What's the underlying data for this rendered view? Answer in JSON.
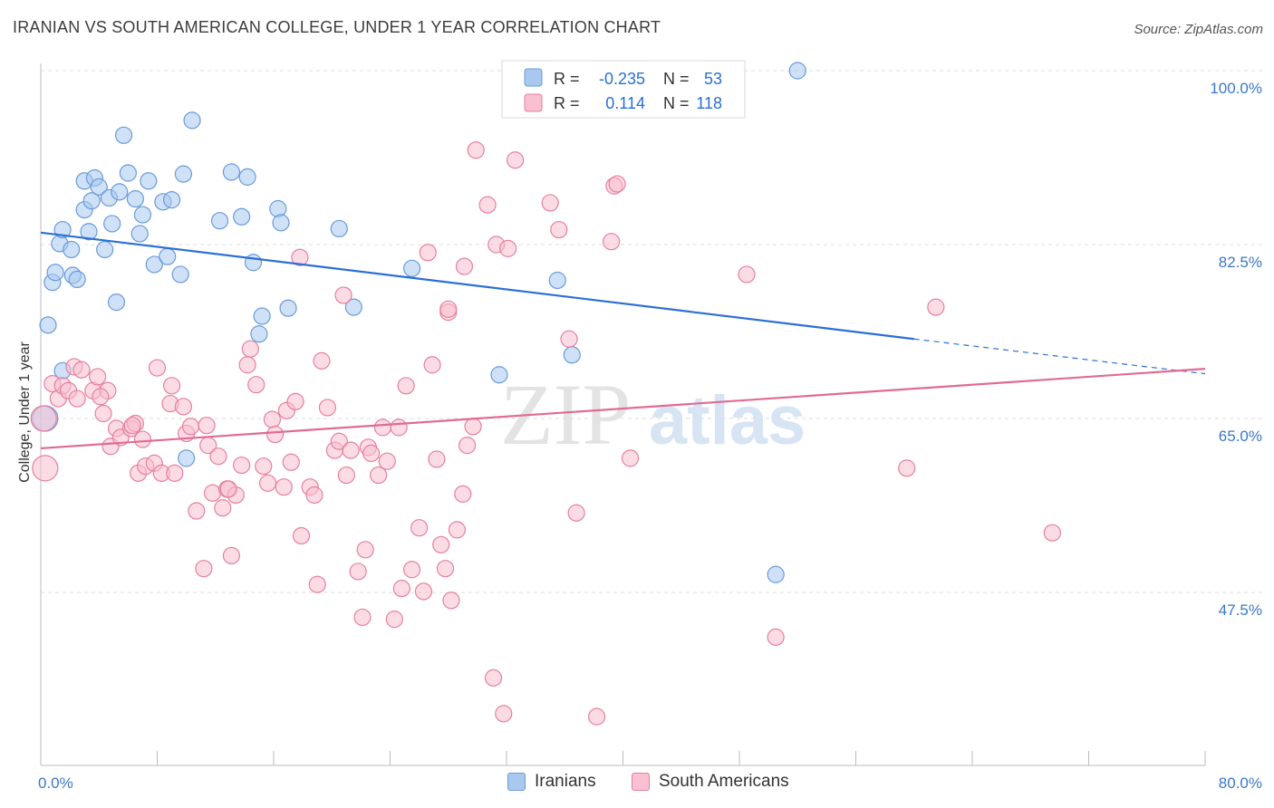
{
  "header": {
    "title": "IRANIAN VS SOUTH AMERICAN COLLEGE, UNDER 1 YEAR CORRELATION CHART",
    "source": "Source: ZipAtlas.com"
  },
  "watermark": {
    "zip": "ZIP",
    "atlas": "atlas"
  },
  "stats_legend": [
    {
      "r_label": "R =",
      "r_value": "-0.235",
      "n_label": "N =",
      "n_value": "53",
      "color": "#a8c8f0",
      "stroke": "#6a9bd8"
    },
    {
      "r_label": "R =",
      "r_value": "0.114",
      "n_label": "N =",
      "n_value": "118",
      "color": "#f8c0d0",
      "stroke": "#e67fa0"
    }
  ],
  "bottom_legend": [
    {
      "label": "Iranians",
      "color": "#a8c8f0",
      "stroke": "#6a9bd8"
    },
    {
      "label": "South Americans",
      "color": "#f8c0d0",
      "stroke": "#e67fa0"
    }
  ],
  "chart_data": {
    "type": "scatter",
    "title": "IRANIAN VS SOUTH AMERICAN COLLEGE, UNDER 1 YEAR CORRELATION CHART",
    "xlabel": "",
    "ylabel": "College, Under 1 year",
    "xlim": [
      0,
      80
    ],
    "ylim": [
      32,
      102
    ],
    "x_tick_labels": {
      "left": "0.0%",
      "right": "80.0%"
    },
    "y_ticks": [
      {
        "value": 100,
        "label": "100.0%"
      },
      {
        "value": 82.5,
        "label": "82.5%"
      },
      {
        "value": 65,
        "label": "65.0%"
      },
      {
        "value": 47.5,
        "label": "47.5%"
      }
    ],
    "grid": true,
    "series": [
      {
        "name": "Iranians",
        "color": "#a8c8f0",
        "stroke": "#6a9bd8",
        "line_color": "#2a6fd6",
        "trend": {
          "x0": 0,
          "y0": 83.7,
          "x1": 60,
          "y1": 73.0,
          "dash_to_x": 80,
          "dash_y": 69.5
        },
        "points": [
          [
            0.8,
            78.7
          ],
          [
            1.0,
            79.7
          ],
          [
            1.3,
            82.6
          ],
          [
            1.5,
            84.0
          ],
          [
            2.1,
            82.0
          ],
          [
            2.2,
            79.4
          ],
          [
            2.5,
            79.0
          ],
          [
            3.0,
            88.9
          ],
          [
            3.0,
            86.0
          ],
          [
            3.3,
            83.8
          ],
          [
            3.5,
            86.9
          ],
          [
            3.7,
            89.2
          ],
          [
            4.0,
            88.3
          ],
          [
            4.4,
            82.0
          ],
          [
            4.7,
            87.2
          ],
          [
            4.9,
            84.6
          ],
          [
            5.2,
            76.7
          ],
          [
            5.4,
            87.8
          ],
          [
            5.7,
            93.5
          ],
          [
            6.0,
            89.7
          ],
          [
            6.5,
            87.1
          ],
          [
            6.8,
            83.6
          ],
          [
            7.0,
            85.5
          ],
          [
            7.4,
            88.9
          ],
          [
            7.8,
            80.5
          ],
          [
            8.4,
            86.8
          ],
          [
            8.7,
            81.3
          ],
          [
            9.0,
            87.0
          ],
          [
            9.6,
            79.5
          ],
          [
            9.8,
            89.6
          ],
          [
            10.4,
            95.0
          ],
          [
            12.3,
            84.9
          ],
          [
            13.1,
            89.8
          ],
          [
            13.8,
            85.3
          ],
          [
            14.2,
            89.3
          ],
          [
            14.6,
            80.7
          ],
          [
            15.2,
            75.3
          ],
          [
            15.0,
            73.5
          ],
          [
            16.3,
            86.1
          ],
          [
            16.5,
            84.7
          ],
          [
            17.0,
            76.1
          ],
          [
            20.5,
            84.1
          ],
          [
            21.5,
            76.2
          ],
          [
            25.5,
            80.1
          ],
          [
            31.5,
            69.4
          ],
          [
            35.5,
            78.9
          ],
          [
            36.5,
            71.4
          ],
          [
            10.0,
            61.0
          ],
          [
            50.5,
            49.3
          ],
          [
            52.0,
            100.0
          ],
          [
            1.5,
            69.8
          ],
          [
            0.5,
            74.4
          ],
          [
            0.3,
            65.0
          ]
        ]
      },
      {
        "name": "South Americans",
        "color": "#f8c0d0",
        "stroke": "#e67fa0",
        "line_color": "#e06b94",
        "trend": {
          "x0": 0,
          "y0": 62.0,
          "x1": 80,
          "y1": 70.0
        },
        "points": [
          [
            0.3,
            60.0
          ],
          [
            0.8,
            68.5
          ],
          [
            1.2,
            67.0
          ],
          [
            1.5,
            68.3
          ],
          [
            1.9,
            67.8
          ],
          [
            2.3,
            70.2
          ],
          [
            2.8,
            69.9
          ],
          [
            2.5,
            67.0
          ],
          [
            3.6,
            67.8
          ],
          [
            3.9,
            69.2
          ],
          [
            4.3,
            65.5
          ],
          [
            4.6,
            67.8
          ],
          [
            4.8,
            62.2
          ],
          [
            5.2,
            64.0
          ],
          [
            5.5,
            63.1
          ],
          [
            6.2,
            64.0
          ],
          [
            6.5,
            64.5
          ],
          [
            6.7,
            59.5
          ],
          [
            7.0,
            62.9
          ],
          [
            7.2,
            60.2
          ],
          [
            7.8,
            60.5
          ],
          [
            8.0,
            70.1
          ],
          [
            8.3,
            59.5
          ],
          [
            8.9,
            66.5
          ],
          [
            9.0,
            68.3
          ],
          [
            9.2,
            59.5
          ],
          [
            9.8,
            66.2
          ],
          [
            10.0,
            63.5
          ],
          [
            10.3,
            64.2
          ],
          [
            10.7,
            55.7
          ],
          [
            11.2,
            49.9
          ],
          [
            11.4,
            64.3
          ],
          [
            11.5,
            62.3
          ],
          [
            11.8,
            57.5
          ],
          [
            12.2,
            61.2
          ],
          [
            12.5,
            56.0
          ],
          [
            12.8,
            57.9
          ],
          [
            13.1,
            51.2
          ],
          [
            13.4,
            57.3
          ],
          [
            13.8,
            60.3
          ],
          [
            14.4,
            72.0
          ],
          [
            14.2,
            70.4
          ],
          [
            14.8,
            68.4
          ],
          [
            15.3,
            60.2
          ],
          [
            15.6,
            58.5
          ],
          [
            15.9,
            64.9
          ],
          [
            16.1,
            63.4
          ],
          [
            16.7,
            58.1
          ],
          [
            16.9,
            65.8
          ],
          [
            17.2,
            60.6
          ],
          [
            17.5,
            66.7
          ],
          [
            17.8,
            81.2
          ],
          [
            17.9,
            53.2
          ],
          [
            18.5,
            58.1
          ],
          [
            18.8,
            57.3
          ],
          [
            19.0,
            48.3
          ],
          [
            19.3,
            70.8
          ],
          [
            19.7,
            66.1
          ],
          [
            20.2,
            61.8
          ],
          [
            20.5,
            62.7
          ],
          [
            20.8,
            77.4
          ],
          [
            21.0,
            59.3
          ],
          [
            21.3,
            61.8
          ],
          [
            21.8,
            49.6
          ],
          [
            22.1,
            45.0
          ],
          [
            22.3,
            51.8
          ],
          [
            22.5,
            62.1
          ],
          [
            22.7,
            61.5
          ],
          [
            23.2,
            59.3
          ],
          [
            23.5,
            64.1
          ],
          [
            23.8,
            60.7
          ],
          [
            24.3,
            44.8
          ],
          [
            24.6,
            64.1
          ],
          [
            24.8,
            47.9
          ],
          [
            25.1,
            68.3
          ],
          [
            25.5,
            49.8
          ],
          [
            26.0,
            54.0
          ],
          [
            26.3,
            47.6
          ],
          [
            26.6,
            81.7
          ],
          [
            26.9,
            70.4
          ],
          [
            27.2,
            60.9
          ],
          [
            27.5,
            52.3
          ],
          [
            27.8,
            49.9
          ],
          [
            28.0,
            75.7
          ],
          [
            28.2,
            46.7
          ],
          [
            28.6,
            53.8
          ],
          [
            29.0,
            57.4
          ],
          [
            29.1,
            80.3
          ],
          [
            29.3,
            62.3
          ],
          [
            29.7,
            64.2
          ],
          [
            29.9,
            92.0
          ],
          [
            30.7,
            86.5
          ],
          [
            31.1,
            38.9
          ],
          [
            31.3,
            82.5
          ],
          [
            31.8,
            35.3
          ],
          [
            32.1,
            82.1
          ],
          [
            32.6,
            91.0
          ],
          [
            35.0,
            86.7
          ],
          [
            35.6,
            84.0
          ],
          [
            36.3,
            73.0
          ],
          [
            36.8,
            55.5
          ],
          [
            38.2,
            35.0
          ],
          [
            39.2,
            82.8
          ],
          [
            39.4,
            88.4
          ],
          [
            39.6,
            88.6
          ],
          [
            40.5,
            61.0
          ],
          [
            48.5,
            79.5
          ],
          [
            50.5,
            43.0
          ],
          [
            59.5,
            60.0
          ],
          [
            61.5,
            76.2
          ],
          [
            69.5,
            53.5
          ],
          [
            0.2,
            65.0
          ],
          [
            4.1,
            67.2
          ],
          [
            6.3,
            64.3
          ],
          [
            12.9,
            57.9
          ],
          [
            28.0,
            76.0
          ]
        ]
      }
    ]
  }
}
